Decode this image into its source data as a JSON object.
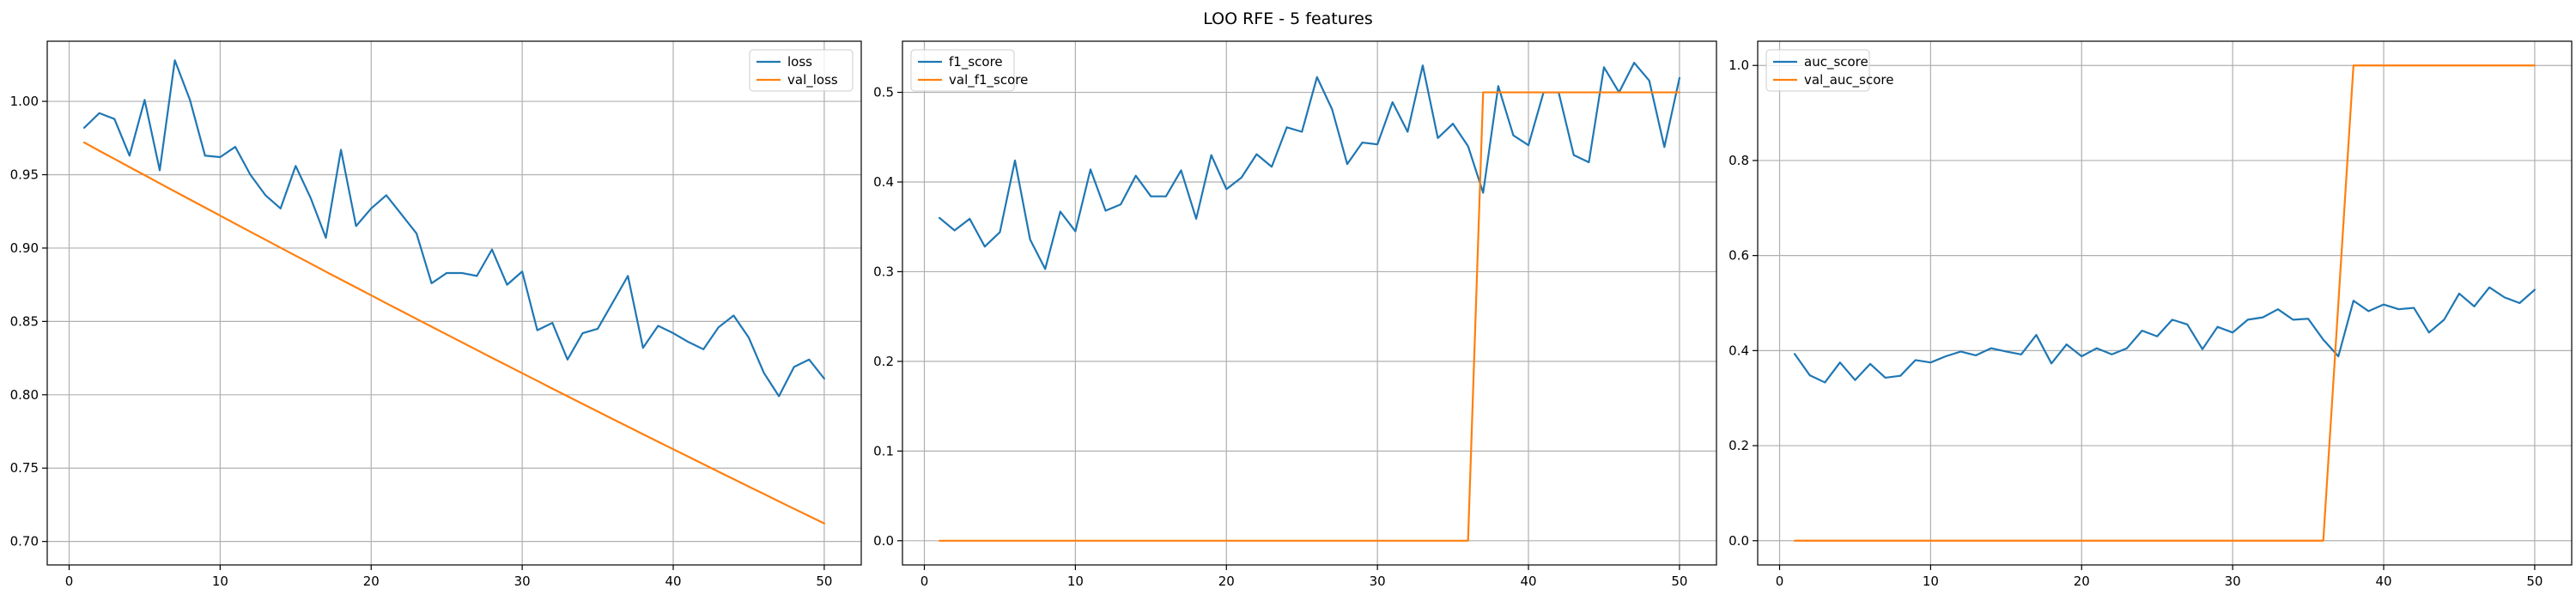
{
  "figure": {
    "title": "LOO RFE - 5 features"
  },
  "colors": {
    "series_blue": "#1f77b4",
    "series_orange": "#ff7f0e",
    "grid": "#b0b0b0",
    "axes": "#000000"
  },
  "chart_data": [
    {
      "type": "line",
      "title": "",
      "xlabel": "",
      "ylabel": "",
      "xlim": [
        -1.45,
        52.45
      ],
      "ylim": [
        0.684,
        1.041
      ],
      "xticks": [
        0,
        10,
        20,
        30,
        40,
        50
      ],
      "yticks": [
        0.7,
        0.75,
        0.8,
        0.85,
        0.9,
        0.95,
        1.0
      ],
      "ytick_labels": [
        "0.70",
        "0.75",
        "0.80",
        "0.85",
        "0.90",
        "0.95",
        "1.00"
      ],
      "grid": true,
      "legend_position": "top-right",
      "x": [
        1,
        2,
        3,
        4,
        5,
        6,
        7,
        8,
        9,
        10,
        11,
        12,
        13,
        14,
        15,
        16,
        17,
        18,
        19,
        20,
        21,
        22,
        23,
        24,
        25,
        26,
        27,
        28,
        29,
        30,
        31,
        32,
        33,
        34,
        35,
        36,
        37,
        38,
        39,
        40,
        41,
        42,
        43,
        44,
        45,
        46,
        47,
        48,
        49,
        50
      ],
      "series": [
        {
          "name": "loss",
          "color": "#1f77b4",
          "values": [
            0.982,
            0.992,
            0.988,
            0.963,
            1.001,
            0.953,
            1.028,
            1.001,
            0.963,
            0.962,
            0.969,
            0.95,
            0.936,
            0.927,
            0.956,
            0.934,
            0.907,
            0.967,
            0.915,
            0.927,
            0.936,
            0.923,
            0.91,
            0.876,
            0.883,
            0.883,
            0.881,
            0.899,
            0.875,
            0.884,
            0.844,
            0.849,
            0.824,
            0.842,
            0.845,
            0.863,
            0.881,
            0.832,
            0.847,
            0.842,
            0.836,
            0.831,
            0.846,
            0.854,
            0.839,
            0.815,
            0.799,
            0.819,
            0.824,
            0.811
          ]
        },
        {
          "name": "val_loss",
          "color": "#ff7f0e",
          "values": [
            0.972,
            0.9663,
            0.9608,
            0.9552,
            0.9497,
            0.9441,
            0.9386,
            0.9331,
            0.9276,
            0.9221,
            0.9166,
            0.9111,
            0.9057,
            0.9002,
            0.8948,
            0.8894,
            0.8839,
            0.8785,
            0.8732,
            0.8678,
            0.8624,
            0.8571,
            0.8517,
            0.8464,
            0.8411,
            0.8358,
            0.8305,
            0.8252,
            0.82,
            0.8147,
            0.8095,
            0.8042,
            0.799,
            0.7938,
            0.7886,
            0.7834,
            0.7783,
            0.7731,
            0.768,
            0.7629,
            0.7578,
            0.7527,
            0.7476,
            0.7425,
            0.7374,
            0.7324,
            0.7273,
            0.7223,
            0.7173,
            0.7123
          ]
        }
      ]
    },
    {
      "type": "line",
      "title": "",
      "xlabel": "",
      "ylabel": "",
      "xlim": [
        -1.45,
        52.45
      ],
      "ylim": [
        -0.027,
        0.557
      ],
      "xticks": [
        0,
        10,
        20,
        30,
        40,
        50
      ],
      "yticks": [
        0.0,
        0.1,
        0.2,
        0.3,
        0.4,
        0.5
      ],
      "ytick_labels": [
        "0.0",
        "0.1",
        "0.2",
        "0.3",
        "0.4",
        "0.5"
      ],
      "grid": true,
      "legend_position": "top-left",
      "x": [
        1,
        2,
        3,
        4,
        5,
        6,
        7,
        8,
        9,
        10,
        11,
        12,
        13,
        14,
        15,
        16,
        17,
        18,
        19,
        20,
        21,
        22,
        23,
        24,
        25,
        26,
        27,
        28,
        29,
        30,
        31,
        32,
        33,
        34,
        35,
        36,
        37,
        38,
        39,
        40,
        41,
        42,
        43,
        44,
        45,
        46,
        47,
        48,
        49,
        50
      ],
      "series": [
        {
          "name": "f1_score",
          "color": "#1f77b4",
          "values": [
            0.36,
            0.346,
            0.359,
            0.328,
            0.344,
            0.424,
            0.336,
            0.303,
            0.367,
            0.345,
            0.414,
            0.368,
            0.375,
            0.407,
            0.384,
            0.384,
            0.413,
            0.359,
            0.43,
            0.392,
            0.405,
            0.431,
            0.417,
            0.461,
            0.456,
            0.517,
            0.481,
            0.42,
            0.444,
            0.442,
            0.489,
            0.456,
            0.53,
            0.449,
            0.465,
            0.44,
            0.388,
            0.507,
            0.452,
            0.441,
            0.5,
            0.5,
            0.43,
            0.422,
            0.528,
            0.5,
            0.533,
            0.513,
            0.439,
            0.516
          ]
        },
        {
          "name": "val_f1_score",
          "color": "#ff7f0e",
          "values": [
            0.0,
            0.0,
            0.0,
            0.0,
            0.0,
            0.0,
            0.0,
            0.0,
            0.0,
            0.0,
            0.0,
            0.0,
            0.0,
            0.0,
            0.0,
            0.0,
            0.0,
            0.0,
            0.0,
            0.0,
            0.0,
            0.0,
            0.0,
            0.0,
            0.0,
            0.0,
            0.0,
            0.0,
            0.0,
            0.0,
            0.0,
            0.0,
            0.0,
            0.0,
            0.0,
            0.0,
            0.5,
            0.5,
            0.5,
            0.5,
            0.5,
            0.5,
            0.5,
            0.5,
            0.5,
            0.5,
            0.5,
            0.5,
            0.5,
            0.5
          ]
        }
      ]
    },
    {
      "type": "line",
      "title": "",
      "xlabel": "",
      "ylabel": "",
      "xlim": [
        -1.45,
        52.45
      ],
      "ylim": [
        -0.051,
        1.051
      ],
      "xticks": [
        0,
        10,
        20,
        30,
        40,
        50
      ],
      "yticks": [
        0.0,
        0.2,
        0.4,
        0.6,
        0.8,
        1.0
      ],
      "ytick_labels": [
        "0.0",
        "0.2",
        "0.4",
        "0.6",
        "0.8",
        "1.0"
      ],
      "grid": true,
      "legend_position": "top-left",
      "x": [
        1,
        2,
        3,
        4,
        5,
        6,
        7,
        8,
        9,
        10,
        11,
        12,
        13,
        14,
        15,
        16,
        17,
        18,
        19,
        20,
        21,
        22,
        23,
        24,
        25,
        26,
        27,
        28,
        29,
        30,
        31,
        32,
        33,
        34,
        35,
        36,
        37,
        38,
        39,
        40,
        41,
        42,
        43,
        44,
        45,
        46,
        47,
        48,
        49,
        50
      ],
      "series": [
        {
          "name": "auc_score",
          "color": "#1f77b4",
          "values": [
            0.393,
            0.348,
            0.333,
            0.375,
            0.338,
            0.372,
            0.343,
            0.347,
            0.38,
            0.375,
            0.388,
            0.398,
            0.39,
            0.405,
            0.398,
            0.392,
            0.433,
            0.373,
            0.413,
            0.388,
            0.405,
            0.392,
            0.405,
            0.442,
            0.43,
            0.465,
            0.455,
            0.403,
            0.45,
            0.438,
            0.465,
            0.47,
            0.487,
            0.465,
            0.467,
            0.423,
            0.388,
            0.505,
            0.483,
            0.497,
            0.487,
            0.49,
            0.438,
            0.465,
            0.52,
            0.493,
            0.533,
            0.512,
            0.5,
            0.528
          ]
        },
        {
          "name": "val_auc_score",
          "color": "#ff7f0e",
          "values": [
            0.0,
            0.0,
            0.0,
            0.0,
            0.0,
            0.0,
            0.0,
            0.0,
            0.0,
            0.0,
            0.0,
            0.0,
            0.0,
            0.0,
            0.0,
            0.0,
            0.0,
            0.0,
            0.0,
            0.0,
            0.0,
            0.0,
            0.0,
            0.0,
            0.0,
            0.0,
            0.0,
            0.0,
            0.0,
            0.0,
            0.0,
            0.0,
            0.0,
            0.0,
            0.0,
            0.0,
            0.5,
            1.0,
            1.0,
            1.0,
            1.0,
            1.0,
            1.0,
            1.0,
            1.0,
            1.0,
            1.0,
            1.0,
            1.0,
            1.0
          ]
        }
      ]
    }
  ]
}
